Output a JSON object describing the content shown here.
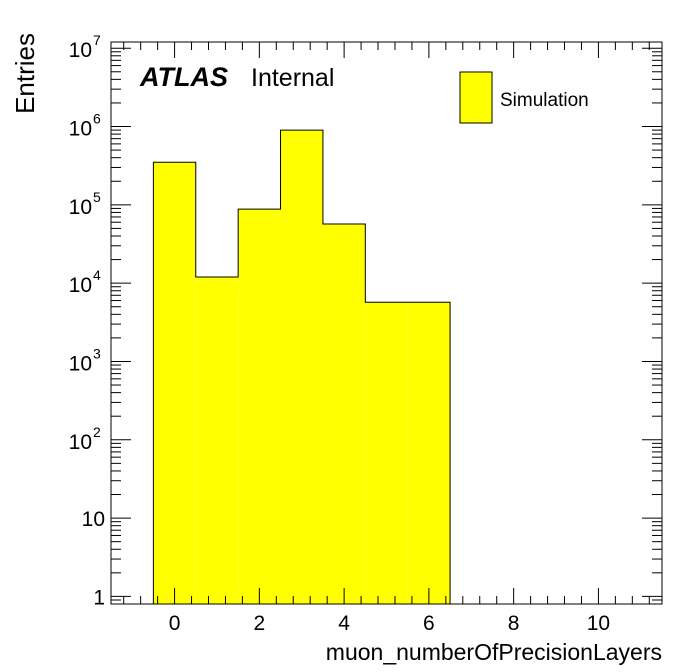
{
  "chart_data": {
    "type": "bar",
    "histogram": true,
    "xlabel": "muon_numberOfPrecisionLayers",
    "ylabel": "Entries",
    "xlim": [
      -1.5,
      11.5
    ],
    "ylim": [
      0.8,
      12000000
    ],
    "yscale": "log",
    "x_ticks": [
      {
        "value": 0,
        "label": "0"
      },
      {
        "value": 2,
        "label": "2"
      },
      {
        "value": 4,
        "label": "4"
      },
      {
        "value": 6,
        "label": "6"
      },
      {
        "value": 8,
        "label": "8"
      },
      {
        "value": 10,
        "label": "10"
      }
    ],
    "y_ticks": [
      {
        "value": 1,
        "label": "1",
        "exp": ""
      },
      {
        "value": 10,
        "label": "10",
        "exp": ""
      },
      {
        "value": 100,
        "label": "10",
        "exp": "2"
      },
      {
        "value": 1000,
        "label": "10",
        "exp": "3"
      },
      {
        "value": 10000,
        "label": "10",
        "exp": "4"
      },
      {
        "value": 100000,
        "label": "10",
        "exp": "5"
      },
      {
        "value": 1000000,
        "label": "10",
        "exp": "6"
      },
      {
        "value": 10000000,
        "label": "10",
        "exp": "7"
      }
    ],
    "bins": [
      {
        "low": -0.5,
        "high": 0.5,
        "value": 350000
      },
      {
        "low": 0.5,
        "high": 1.5,
        "value": 12000
      },
      {
        "low": 1.5,
        "high": 2.5,
        "value": 88000
      },
      {
        "low": 2.5,
        "high": 3.5,
        "value": 900000
      },
      {
        "low": 3.5,
        "high": 4.5,
        "value": 57000
      },
      {
        "low": 4.5,
        "high": 5.5,
        "value": 5700
      },
      {
        "low": 5.5,
        "high": 6.5,
        "value": 5700
      }
    ],
    "series": [
      {
        "name": "Simulation",
        "color": "#ffff00"
      }
    ],
    "legend": "top-right",
    "grid": false
  },
  "labels": {
    "atlas": "ATLAS",
    "internal": "Internal"
  },
  "colors": {
    "fill": "#ffff00",
    "line": "#000000"
  }
}
